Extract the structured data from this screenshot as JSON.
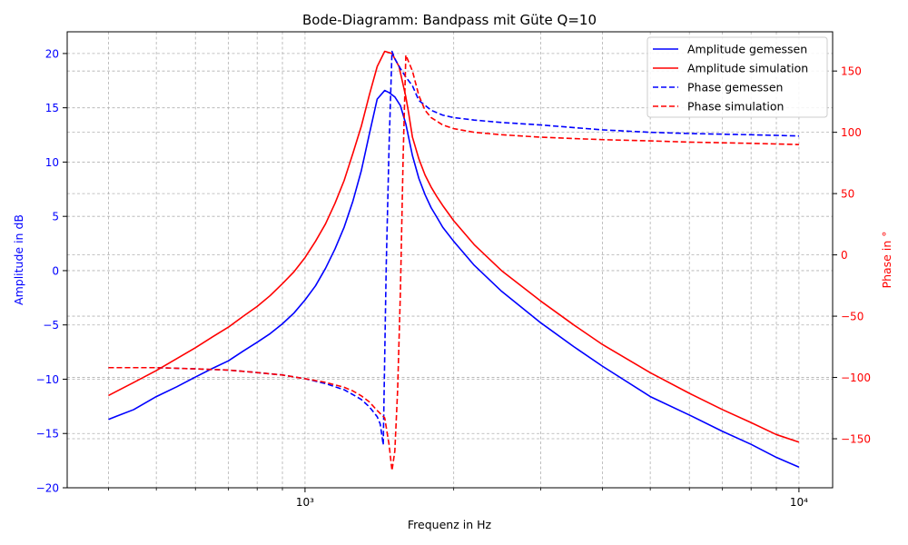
{
  "chart_data": {
    "type": "line",
    "title": "Bode-Diagramm: Bandpass mit Güte Q=10",
    "xlabel": "Frequenz in Hz",
    "ylabel_left": "Amplitude in dB",
    "ylabel_right": "Phase in °",
    "x_scale": "log",
    "xlim": [
      330,
      11700
    ],
    "ylim_left": [
      -20,
      22
    ],
    "ylim_right": [
      -190,
      182
    ],
    "x_major_ticks": [
      {
        "v": 1000,
        "label": "10³"
      },
      {
        "v": 10000,
        "label": "10⁴"
      }
    ],
    "x_minor_ticks": [
      400,
      500,
      600,
      700,
      800,
      900,
      2000,
      3000,
      4000,
      5000,
      6000,
      7000,
      8000,
      9000
    ],
    "y_ticks_left": [
      -20,
      -15,
      -10,
      -5,
      0,
      5,
      10,
      15,
      20
    ],
    "y_ticks_right": [
      -150,
      -100,
      -50,
      0,
      50,
      100,
      150
    ],
    "grid": true,
    "legend_position": "top-right",
    "colors": {
      "measured": "#0000ff",
      "simulated": "#ff0000",
      "left_axis": "#0000ff",
      "right_axis": "#ff0000",
      "grid": "#b0b0b0"
    },
    "series": [
      {
        "name": "Amplitude gemessen",
        "axis": "left",
        "style": "solid",
        "color": "#0000ff",
        "x": [
          400,
          450,
          500,
          550,
          600,
          650,
          700,
          750,
          800,
          850,
          900,
          950,
          1000,
          1050,
          1100,
          1150,
          1200,
          1250,
          1300,
          1350,
          1400,
          1450,
          1480,
          1520,
          1560,
          1600,
          1650,
          1700,
          1750,
          1800,
          1850,
          1900,
          2000,
          2200,
          2500,
          3000,
          3500,
          4000,
          5000,
          6000,
          7000,
          8000,
          9000,
          10000
        ],
        "y": [
          -13.7,
          -12.8,
          -11.6,
          -10.7,
          -9.8,
          -9.0,
          -8.3,
          -7.4,
          -6.6,
          -5.8,
          -4.9,
          -3.9,
          -2.7,
          -1.4,
          0.2,
          2.0,
          4.0,
          6.4,
          9.2,
          12.6,
          15.8,
          16.6,
          16.4,
          16.0,
          15.2,
          13.5,
          10.6,
          8.5,
          7.0,
          5.8,
          4.9,
          4.0,
          2.7,
          0.5,
          -1.9,
          -4.8,
          -7.0,
          -8.8,
          -11.6,
          -13.3,
          -14.8,
          -16.0,
          -17.2,
          -18.1
        ]
      },
      {
        "name": "Amplitude simulation",
        "axis": "left",
        "style": "solid",
        "color": "#ff0000",
        "x": [
          400,
          450,
          500,
          550,
          600,
          650,
          700,
          750,
          800,
          850,
          900,
          950,
          1000,
          1050,
          1100,
          1150,
          1200,
          1250,
          1300,
          1350,
          1400,
          1450,
          1500,
          1550,
          1600,
          1620,
          1650,
          1700,
          1750,
          1800,
          1850,
          1900,
          2000,
          2200,
          2500,
          3000,
          3500,
          4000,
          5000,
          6000,
          7000,
          8000,
          9000,
          10000
        ],
        "y": [
          -11.5,
          -10.3,
          -9.2,
          -8.1,
          -7.1,
          -6.1,
          -5.2,
          -4.2,
          -3.3,
          -2.3,
          -1.2,
          -0.1,
          1.2,
          2.7,
          4.3,
          6.2,
          8.3,
          10.8,
          13.3,
          16.2,
          18.8,
          20.2,
          20.0,
          18.8,
          16.0,
          14.6,
          12.3,
          10.3,
          8.8,
          7.7,
          6.8,
          6.0,
          4.6,
          2.4,
          0.0,
          -2.8,
          -5.0,
          -6.8,
          -9.4,
          -11.3,
          -12.8,
          -14.0,
          -15.1,
          -15.8
        ]
      },
      {
        "name": "Phase gemessen",
        "axis": "right",
        "style": "dashed",
        "color": "#0000ff",
        "x": [
          400,
          500,
          600,
          700,
          800,
          900,
          1000,
          1100,
          1200,
          1250,
          1300,
          1350,
          1400,
          1420,
          1440,
          1460,
          1480,
          1500,
          1520,
          1560,
          1600,
          1650,
          1700,
          1750,
          1800,
          1900,
          2000,
          2200,
          2500,
          3000,
          4000,
          5000,
          6000,
          8000,
          10000
        ],
        "y": [
          -92,
          -92,
          -93,
          -94,
          -96,
          -98,
          -101,
          -105,
          -110,
          -114,
          -118,
          -124,
          -132,
          -138,
          -155,
          -10,
          90,
          166,
          160,
          152,
          145,
          138,
          126,
          122,
          118,
          114,
          112,
          110,
          108,
          106,
          102,
          100,
          99,
          98,
          97
        ]
      },
      {
        "name": "Phase simulation",
        "axis": "right",
        "style": "dashed",
        "color": "#ff0000",
        "x": [
          400,
          500,
          600,
          700,
          800,
          900,
          1000,
          1100,
          1200,
          1250,
          1300,
          1350,
          1400,
          1450,
          1480,
          1500,
          1520,
          1540,
          1560,
          1580,
          1600,
          1650,
          1700,
          1750,
          1800,
          1900,
          2000,
          2200,
          2500,
          3000,
          4000,
          5000,
          6000,
          8000,
          10000
        ],
        "y": [
          -92,
          -92,
          -93,
          -94,
          -96,
          -98,
          -101,
          -104,
          -108,
          -111,
          -115,
          -120,
          -127,
          -133,
          -155,
          -176,
          -160,
          -110,
          -30,
          80,
          163,
          150,
          130,
          118,
          112,
          106,
          103,
          100,
          98,
          96,
          94,
          93,
          92,
          91,
          90
        ]
      }
    ]
  }
}
